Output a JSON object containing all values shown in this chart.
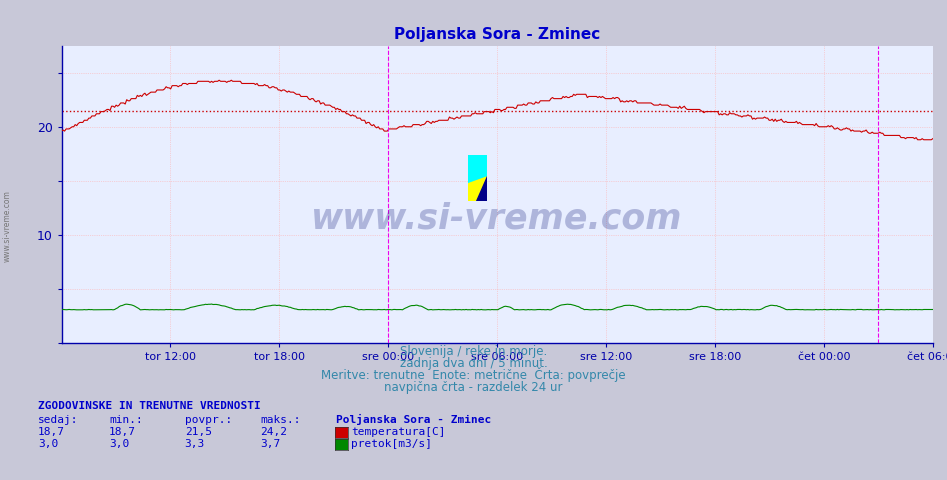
{
  "title": "Poljanska Sora - Zminec",
  "title_color": "#0000cc",
  "fig_bg_color": "#c8c8d8",
  "plot_bg_color": "#e8eeff",
  "grid_color": "#ffb0b0",
  "ylim": [
    0,
    27.5
  ],
  "ytick_positions": [
    0,
    5,
    10,
    15,
    20,
    25
  ],
  "ytick_labels": [
    "",
    "",
    "10",
    "",
    "20",
    ""
  ],
  "tick_color": "#0000aa",
  "x_labels": [
    "tor 12:00",
    "tor 18:00",
    "sre 00:00",
    "sre 06:00",
    "sre 12:00",
    "sre 18:00",
    "čet 00:00",
    "čet 06:00"
  ],
  "avg_temp_line": 21.5,
  "avg_temp_color": "#cc0000",
  "vline_color": "#ee00ee",
  "temp_color": "#cc0000",
  "flow_color": "#008800",
  "watermark": "www.si-vreme.com",
  "watermark_color": "#1a237e",
  "watermark_alpha": 0.28,
  "subtitle1": "Slovenija / reke in morje.",
  "subtitle2": "zadnja dva dni / 5 minut.",
  "subtitle3": "Meritve: trenutne  Enote: metrične  Črta: povprečje",
  "subtitle4": "navpična črta - razdelek 24 ur",
  "subtitle_color": "#3388aa",
  "legend_title": "Poljanska Sora - Zminec",
  "legend_items": [
    "temperatura[C]",
    "pretok[m3/s]"
  ],
  "legend_colors": [
    "#cc0000",
    "#008800"
  ],
  "stats_header": "ZGODOVINSKE IN TRENUTNE VREDNOSTI",
  "stats_cols": [
    "sedaj:",
    "min.:",
    "povpr.:",
    "maks.:"
  ],
  "stats_temp": [
    "18,7",
    "18,7",
    "21,5",
    "24,2"
  ],
  "stats_flow": [
    "3,0",
    "3,0",
    "3,3",
    "3,7"
  ],
  "stats_color": "#0000cc"
}
